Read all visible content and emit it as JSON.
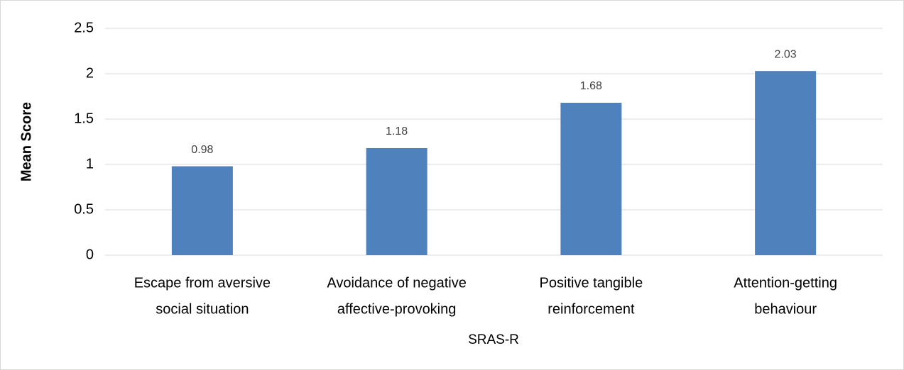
{
  "chart_data": {
    "type": "bar",
    "x_label": "SRAS-R",
    "y_label": "Mean Score",
    "categories": [
      [
        "Escape from aversive",
        "social situation"
      ],
      [
        "Avoidance of negative",
        "affective-provoking"
      ],
      [
        "Positive tangible",
        "reinforcement"
      ],
      [
        "Attention-getting",
        "behaviour"
      ]
    ],
    "values": [
      0.98,
      1.18,
      1.68,
      2.03
    ],
    "color": "#4f81bd",
    "ylim": [
      0,
      2.5
    ],
    "yticks": [
      0,
      0.5,
      1,
      1.5,
      2,
      2.5
    ],
    "grid": true
  }
}
